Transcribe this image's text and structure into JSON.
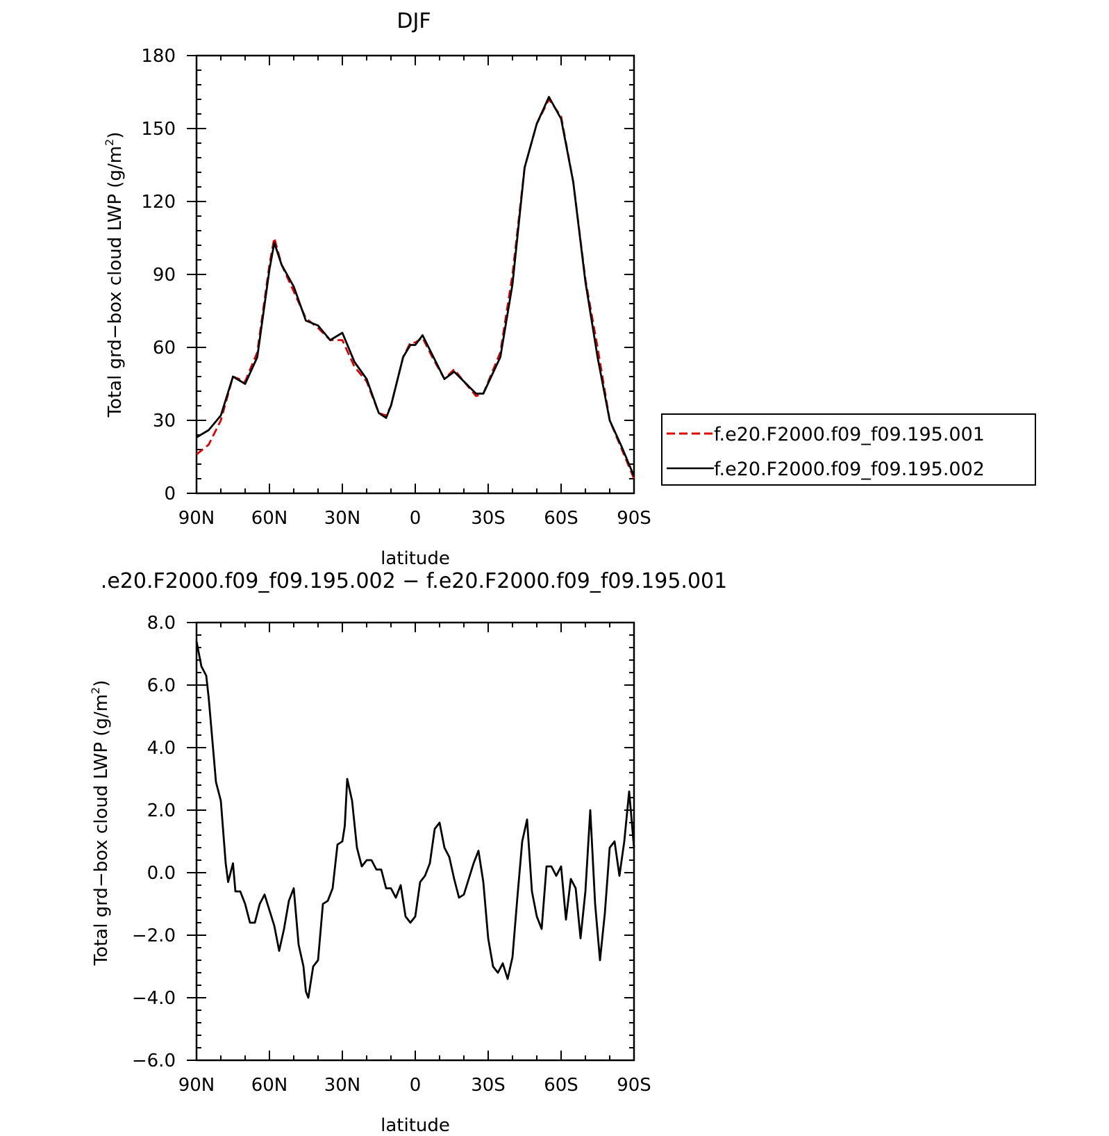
{
  "chart_data": [
    {
      "type": "line",
      "title": "DJF",
      "xlabel": "latitude",
      "ylabel": "Total grd-box cloud LWP (g/m²)",
      "xlim": [
        90,
        -90
      ],
      "ylim": [
        0,
        180
      ],
      "yticks": [
        "0",
        "30",
        "60",
        "90",
        "120",
        "150",
        "180"
      ],
      "xticks": [
        "90N",
        "60N",
        "30N",
        "0",
        "30S",
        "60S",
        "90S"
      ],
      "legend_position": "right",
      "series": [
        {
          "name": "f.e20.F2000.f09_f09.195.001",
          "color": "#e00000",
          "dash": "dashed",
          "x": [
            90,
            85,
            80,
            75,
            70,
            65,
            60,
            58,
            55,
            50,
            45,
            40,
            35,
            30,
            25,
            20,
            15,
            12,
            10,
            5,
            2,
            0,
            -3,
            -7,
            -12,
            -16,
            -20,
            -25,
            -28,
            -35,
            -40,
            -45,
            -50,
            -55,
            -60,
            -65,
            -70,
            -75,
            -80,
            -85,
            -90
          ],
          "values": [
            16,
            20,
            30,
            48,
            46,
            58,
            94,
            105,
            94,
            83,
            72,
            68,
            63,
            63,
            52,
            46,
            33,
            32,
            36,
            56,
            62,
            62,
            64,
            56,
            47,
            51,
            46,
            40,
            41,
            58,
            90,
            134,
            152,
            162,
            155,
            128,
            88,
            60,
            30,
            18,
            6
          ]
        },
        {
          "name": "f.e20.F2000.f09_f09.195.002",
          "color": "#000000",
          "dash": "solid",
          "x": [
            90,
            85,
            80,
            75,
            70,
            65,
            60,
            58,
            55,
            50,
            45,
            40,
            35,
            30,
            25,
            20,
            15,
            12,
            10,
            5,
            2,
            0,
            -3,
            -7,
            -12,
            -16,
            -20,
            -25,
            -28,
            -35,
            -40,
            -45,
            -50,
            -55,
            -60,
            -65,
            -70,
            -75,
            -80,
            -85,
            -90
          ],
          "values": [
            23,
            26,
            32,
            48,
            45,
            56,
            92,
            103,
            94,
            85,
            71,
            69,
            63,
            66,
            54,
            47,
            33,
            31,
            36,
            56,
            61,
            61,
            65,
            57,
            47,
            50,
            46,
            41,
            41,
            56,
            86,
            134,
            152,
            163,
            154,
            128,
            87,
            56,
            30,
            19,
            7
          ]
        }
      ]
    },
    {
      "type": "line",
      "title": ".e20.F2000.f09_f09.195.002 − f.e20.F2000.f09_f09.195.001",
      "xlabel": "latitude",
      "ylabel": "Total grd-box cloud LWP (g/m²)",
      "xlim": [
        90,
        -90
      ],
      "ylim": [
        -6,
        8
      ],
      "yticks": [
        "−6.0",
        "−4.0",
        "−2.0",
        "0.0",
        "2.0",
        "4.0",
        "6.0",
        "8.0"
      ],
      "xticks": [
        "90N",
        "60N",
        "30N",
        "0",
        "30S",
        "60S",
        "90S"
      ],
      "series": [
        {
          "color": "#000000",
          "dash": "solid",
          "x": [
            90,
            88,
            86,
            85,
            84,
            82,
            80,
            78,
            77,
            75,
            74,
            72,
            70,
            68,
            66,
            64,
            62,
            60,
            58,
            56,
            54,
            52,
            50,
            48,
            46,
            45,
            44,
            42,
            40,
            38,
            36,
            34,
            32,
            30,
            29,
            28,
            26,
            24,
            22,
            20,
            18,
            16,
            14,
            12,
            10,
            8,
            6,
            4,
            2,
            0,
            -2,
            -4,
            -6,
            -8,
            -10,
            -12,
            -14,
            -16,
            -18,
            -20,
            -22,
            -24,
            -26,
            -28,
            -30,
            -32,
            -34,
            -36,
            -38,
            -40,
            -42,
            -44,
            -46,
            -48,
            -50,
            -52,
            -54,
            -56,
            -58,
            -60,
            -62,
            -64,
            -66,
            -68,
            -70,
            -72,
            -74,
            -76,
            -78,
            -80,
            -82,
            -84,
            -86,
            -88,
            -90
          ],
          "values": [
            7.4,
            6.6,
            6.3,
            5.6,
            4.7,
            2.9,
            2.3,
            0.3,
            -0.3,
            0.3,
            -0.6,
            -0.6,
            -1.0,
            -1.6,
            -1.6,
            -1.0,
            -0.7,
            -1.2,
            -1.7,
            -2.5,
            -1.8,
            -0.9,
            -0.5,
            -2.3,
            -3.0,
            -3.8,
            -4.0,
            -3.0,
            -2.8,
            -1.0,
            -0.9,
            -0.5,
            0.9,
            1.0,
            1.5,
            3.0,
            2.3,
            0.8,
            0.2,
            0.4,
            0.4,
            0.1,
            0.1,
            -0.5,
            -0.5,
            -0.8,
            -0.4,
            -1.4,
            -1.6,
            -1.4,
            -0.3,
            -0.1,
            0.3,
            1.4,
            1.6,
            0.8,
            0.5,
            -0.2,
            -0.8,
            -0.7,
            -0.2,
            0.3,
            0.7,
            -0.3,
            -2.1,
            -3.0,
            -3.2,
            -2.9,
            -3.4,
            -2.7,
            -0.8,
            1.0,
            1.7,
            -0.6,
            -1.4,
            -1.8,
            0.2,
            0.2,
            -0.1,
            0.2,
            -1.5,
            -0.2,
            -0.5,
            -2.1,
            -0.6,
            2.0,
            -1.0,
            -2.8,
            -1.3,
            0.8,
            1.0,
            -0.1,
            1.0,
            2.6,
            0.8
          ]
        }
      ]
    }
  ],
  "page_title": "DJF",
  "diff_title": ".e20.F2000.f09_f09.195.002 − f.e20.F2000.f09_f09.195.001",
  "top_xlabel": "latitude",
  "bottom_xlabel": "latitude",
  "top_ylabel_main": "Total grd−box cloud LWP (g/m",
  "top_ylabel_sup": "2",
  "top_ylabel_end": ")",
  "bottom_ylabel_main": "Total grd−box cloud LWP (g/m",
  "bottom_ylabel_sup": "2",
  "bottom_ylabel_end": ")",
  "legend": {
    "item1": "f.e20.F2000.f09_f09.195.001",
    "item2": "f.e20.F2000.f09_f09.195.002"
  }
}
